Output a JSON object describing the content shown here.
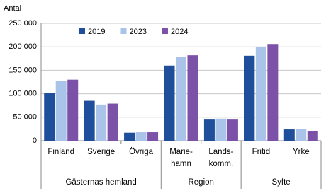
{
  "chart_data": {
    "type": "bar",
    "y_label": "Antal",
    "groups": [
      {
        "name": "Gästernas hemland",
        "categories": [
          "Finland",
          "Sverige",
          "Övriga"
        ]
      },
      {
        "name": "Region",
        "categories": [
          "Marie-\nhamn",
          "Lands-\nkomm."
        ]
      },
      {
        "name": "Syfte",
        "categories": [
          "Fritid",
          "Yrke"
        ]
      }
    ],
    "series": [
      {
        "name": "2019",
        "color": "#1f4e9a",
        "values": [
          101000,
          85000,
          17000,
          160000,
          45000,
          181000,
          24000
        ]
      },
      {
        "name": "2023",
        "color": "#a9c4e8",
        "values": [
          128000,
          77000,
          18000,
          178000,
          47000,
          199000,
          25000
        ]
      },
      {
        "name": "2024",
        "color": "#7b52a8",
        "values": [
          130000,
          79000,
          18000,
          182000,
          45000,
          206000,
          21000
        ]
      }
    ],
    "ylim": [
      0,
      250000
    ],
    "yticks": [
      {
        "value": 0,
        "label": "0"
      },
      {
        "value": 50000,
        "label": "50 000"
      },
      {
        "value": 100000,
        "label": "100 000"
      },
      {
        "value": 150000,
        "label": "150 000"
      },
      {
        "value": 200000,
        "label": "200 000"
      },
      {
        "value": 250000,
        "label": "250 000"
      }
    ],
    "grid": true,
    "legend": "top"
  }
}
